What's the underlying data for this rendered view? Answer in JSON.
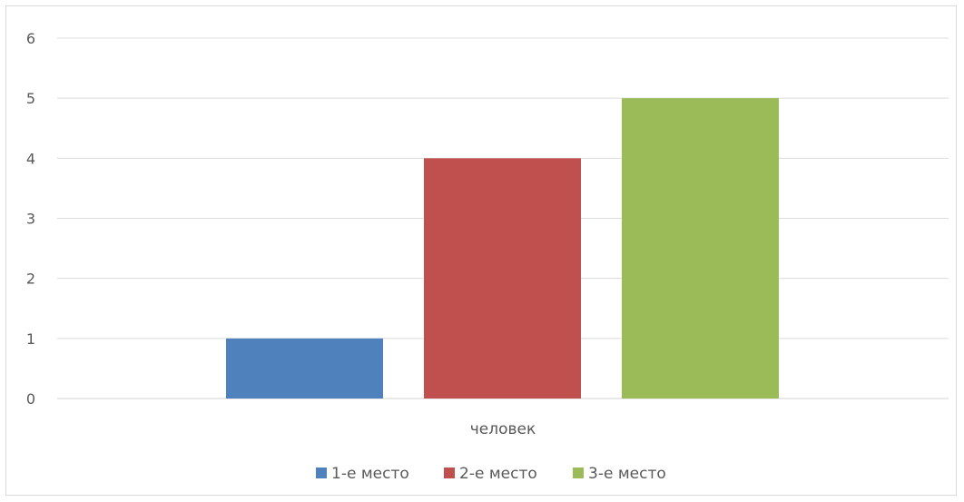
{
  "chart_data": {
    "type": "bar",
    "categories": [
      "человек"
    ],
    "series": [
      {
        "name": "1-е место",
        "values": [
          1
        ],
        "color": "#4f81bd"
      },
      {
        "name": "2-е место",
        "values": [
          4
        ],
        "color": "#c0504d"
      },
      {
        "name": "3-е место",
        "values": [
          5
        ],
        "color": "#9bbb59"
      }
    ],
    "yticks": [
      "0",
      "1",
      "2",
      "3",
      "4",
      "5",
      "6"
    ],
    "ylim": [
      0,
      6
    ],
    "grid": true,
    "legend": "bottom",
    "title": "",
    "xlabel": "",
    "ylabel": ""
  }
}
